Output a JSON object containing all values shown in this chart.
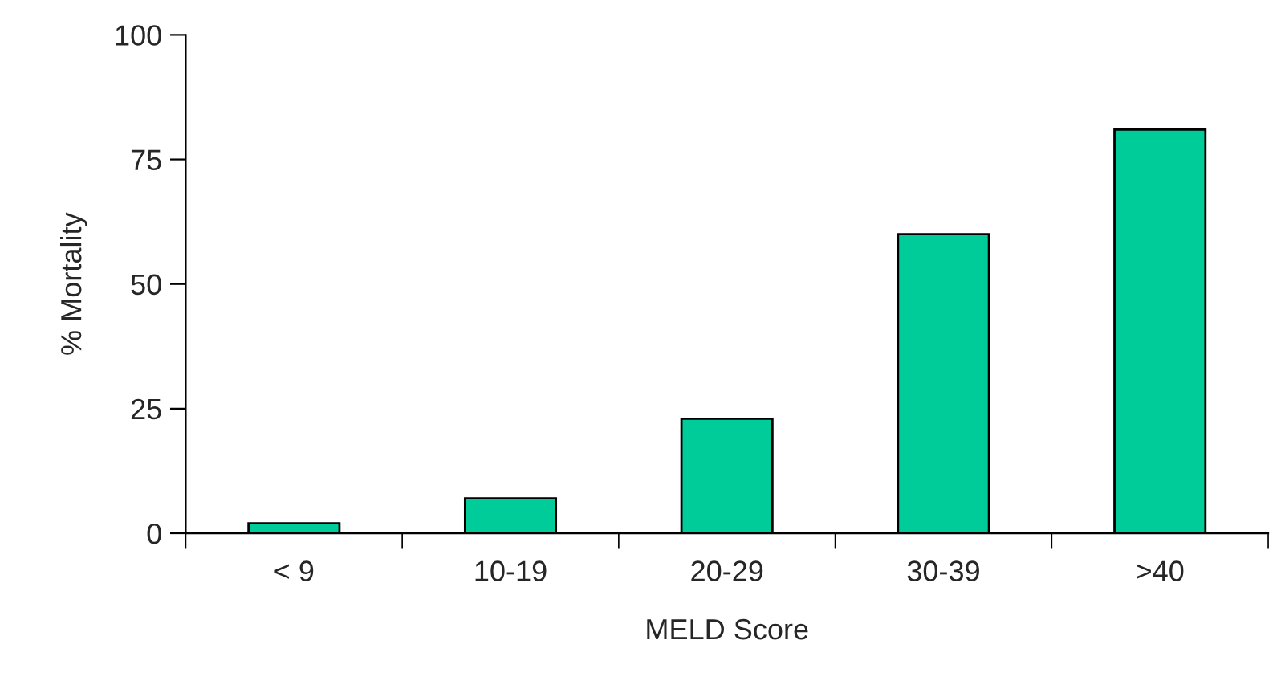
{
  "chart_data": {
    "type": "bar",
    "xlabel": "MELD Score",
    "ylabel": "% Mortality",
    "categories": [
      "< 9",
      "10-19",
      "20-29",
      "30-39",
      ">40"
    ],
    "values": [
      2,
      7,
      23,
      60,
      81
    ],
    "color": "#00cc99",
    "ylim": [
      0,
      100
    ],
    "yticks": [
      0,
      25,
      50,
      75,
      100
    ],
    "grid": false
  }
}
